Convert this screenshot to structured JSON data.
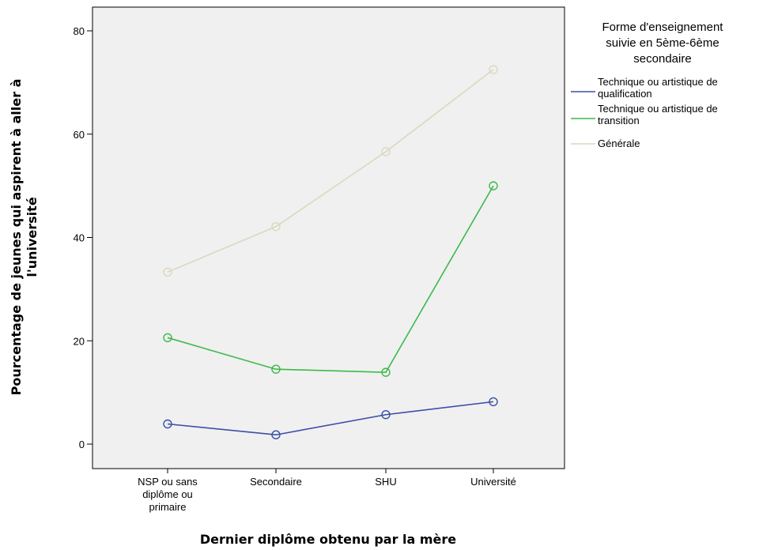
{
  "chart_data": {
    "type": "line",
    "title": "",
    "xlabel": "Dernier diplôme obtenu par la mère",
    "ylabel": [
      "Pourcentage de jeunes qui aspirent à aller à",
      "l'université"
    ],
    "categories": [
      [
        "NSP ou sans",
        "diplôme ou",
        "primaire"
      ],
      [
        "Secondaire"
      ],
      [
        "SHU"
      ],
      [
        "Université"
      ]
    ],
    "yticks": [
      0,
      20,
      40,
      60,
      80
    ],
    "ylim": [
      -3.5,
      84
    ],
    "grid": false,
    "legend_position": "right",
    "legend_title": [
      "Forme d'enseignement",
      "suivie en 5ème-6ème",
      "secondaire"
    ],
    "series": [
      {
        "name": [
          "Technique ou artistique de",
          "qualification"
        ],
        "color": "#3a4fa8",
        "values": [
          3.9,
          1.8,
          5.7,
          8.2
        ]
      },
      {
        "name": [
          "Technique ou artistique de",
          "transition"
        ],
        "color": "#3cb94a",
        "values": [
          20.6,
          14.5,
          13.9,
          50.0
        ]
      },
      {
        "name": [
          "Générale"
        ],
        "color": "#dcd7bd",
        "values": [
          33.3,
          42.1,
          56.6,
          72.5
        ]
      }
    ]
  }
}
